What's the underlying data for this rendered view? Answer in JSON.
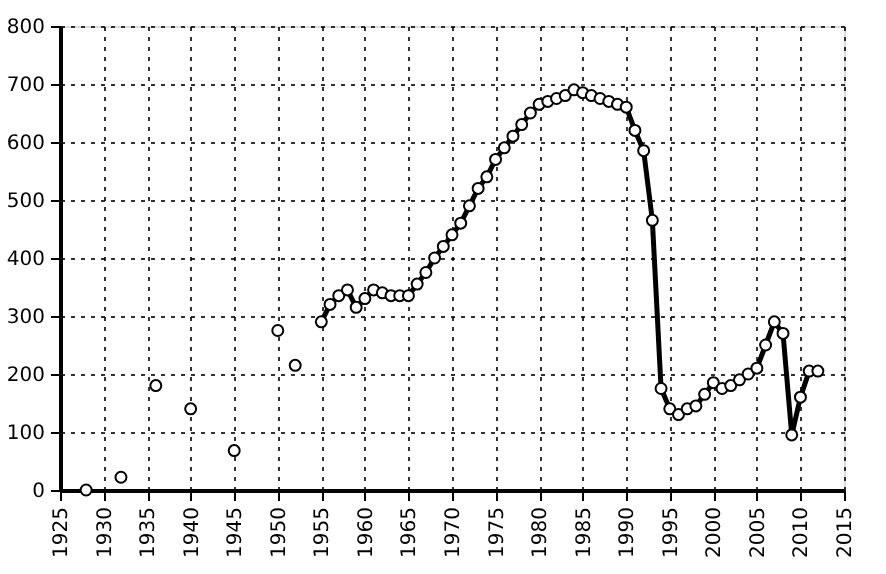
{
  "chart_data": {
    "type": "line",
    "xlim": [
      1925,
      2015
    ],
    "xticks": [
      1925,
      1930,
      1935,
      1940,
      1945,
      1950,
      1955,
      1960,
      1965,
      1970,
      1975,
      1980,
      1985,
      1990,
      1995,
      2000,
      2005,
      2010,
      2015
    ],
    "ylim": [
      0,
      800
    ],
    "yticks": [
      0,
      100,
      200,
      300,
      400,
      500,
      600,
      700,
      800
    ],
    "grid": true,
    "marker": "circle",
    "line_style": "solid",
    "series": [
      {
        "type": "scatter",
        "color": "#000000",
        "x": [
          1928,
          1932,
          1936,
          1940,
          1945,
          1950,
          1952
        ],
        "values": [
          0,
          22,
          180,
          140,
          68,
          275,
          215
        ]
      },
      {
        "color": "#000000",
        "x": [
          1955,
          1956,
          1957,
          1958,
          1959,
          1960,
          1961,
          1962,
          1963,
          1964,
          1965,
          1966,
          1967,
          1968,
          1969,
          1970,
          1971,
          1972,
          1973,
          1974,
          1975,
          1976,
          1977,
          1978,
          1979,
          1980,
          1981,
          1982,
          1983,
          1984,
          1985,
          1986,
          1987,
          1988,
          1989,
          1990,
          1991,
          1992,
          1993,
          1994,
          1995,
          1996,
          1997,
          1998,
          1999,
          2000,
          2001,
          2002,
          2003,
          2004,
          2005,
          2006,
          2007,
          2008,
          2009,
          2010,
          2011,
          2012
        ],
        "values": [
          290,
          320,
          335,
          345,
          315,
          330,
          345,
          340,
          335,
          335,
          335,
          355,
          375,
          400,
          420,
          440,
          460,
          490,
          520,
          540,
          570,
          590,
          610,
          630,
          650,
          665,
          670,
          675,
          680,
          690,
          685,
          680,
          675,
          670,
          665,
          660,
          620,
          585,
          465,
          175,
          140,
          130,
          140,
          145,
          165,
          185,
          175,
          180,
          190,
          200,
          210,
          250,
          290,
          270,
          95,
          160,
          205,
          205
        ]
      }
    ]
  }
}
